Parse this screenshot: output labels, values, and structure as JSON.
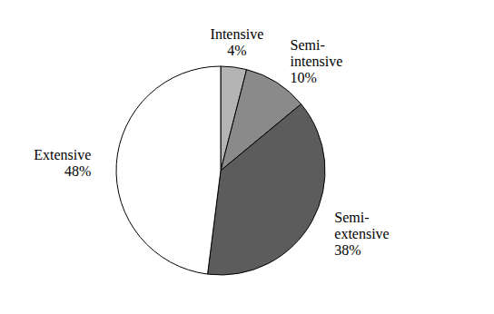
{
  "chart_data": {
    "type": "pie",
    "categories": [
      "Intensive",
      "Semi-intensive",
      "Semi-extensive",
      "Extensive"
    ],
    "values": [
      4,
      10,
      38,
      48
    ],
    "value_labels": [
      "4%",
      "10%",
      "38%",
      "48%"
    ],
    "colors": [
      "#b4b4b4",
      "#8a8a8a",
      "#5c5c5c",
      "#ffffff"
    ],
    "data_labels": true
  }
}
